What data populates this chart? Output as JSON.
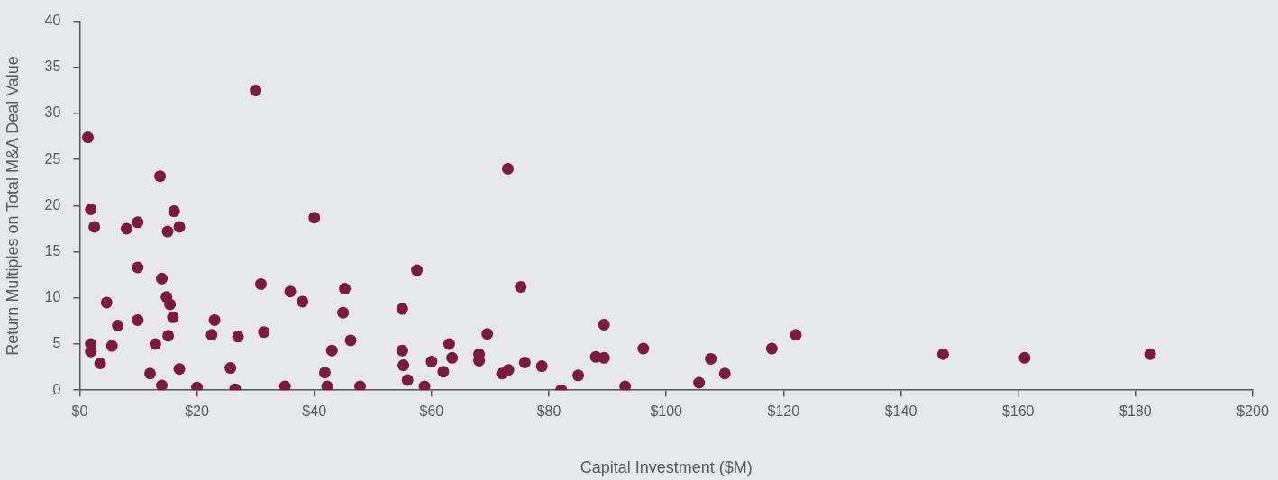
{
  "chart_data": {
    "type": "scatter",
    "xlabel": "Capital Investment ($M)",
    "ylabel": "Return Multiples on Total M&A Deal Value",
    "grid": false,
    "legend": false,
    "marker": "circle",
    "xlim": [
      0,
      200
    ],
    "ylim": [
      0,
      40
    ],
    "xticks": [
      {
        "value": 0,
        "label": "$0"
      },
      {
        "value": 20,
        "label": "$20"
      },
      {
        "value": 40,
        "label": "$40"
      },
      {
        "value": 60,
        "label": "$60"
      },
      {
        "value": 80,
        "label": "$80"
      },
      {
        "value": 100,
        "label": "$100"
      },
      {
        "value": 120,
        "label": "$120"
      },
      {
        "value": 140,
        "label": "$140"
      },
      {
        "value": 160,
        "label": "$160"
      },
      {
        "value": 180,
        "label": "$180"
      },
      {
        "value": 200,
        "label": "$200"
      }
    ],
    "yticks": [
      0,
      5,
      10,
      15,
      20,
      25,
      30,
      35,
      40
    ],
    "series": [
      {
        "color": "#7a1a3e",
        "x": [
          1.4,
          1.9,
          2.5,
          1.9,
          1.9,
          3.5,
          4.6,
          5.5,
          6.5,
          8,
          9.9,
          9.9,
          9.9,
          12,
          12.9,
          13.7,
          14,
          14,
          14.8,
          15,
          15.1,
          15.4,
          15.9,
          16.1,
          17,
          17,
          20,
          22.5,
          23,
          25.7,
          26.5,
          27,
          30,
          30.9,
          31.4,
          35,
          35.9,
          38,
          40,
          41.8,
          42.2,
          43,
          44.9,
          45.2,
          46.2,
          47.8,
          55,
          55,
          55.2,
          55.9,
          57.5,
          58.8,
          60,
          62,
          63,
          63.5,
          68.1,
          68.1,
          69.5,
          72,
          73,
          73.1,
          75.2,
          75.9,
          78.8,
          82.1,
          85,
          88,
          89.4,
          89.4,
          93,
          96.1,
          105.6,
          107.6,
          110,
          118,
          122.1,
          147.2,
          161.1,
          182.5
        ],
        "values": [
          27.4,
          19.6,
          17.7,
          5.0,
          4.2,
          2.9,
          9.5,
          4.8,
          7.0,
          17.5,
          18.2,
          13.3,
          7.6,
          1.8,
          5.0,
          23.2,
          12.1,
          0.5,
          10.1,
          17.2,
          5.9,
          9.3,
          7.9,
          19.4,
          17.7,
          2.3,
          0.3,
          6.0,
          7.6,
          2.4,
          0.1,
          5.8,
          32.5,
          11.5,
          6.3,
          0.4,
          10.7,
          9.6,
          18.7,
          1.9,
          0.4,
          4.3,
          8.4,
          11,
          5.4,
          0.4,
          8.8,
          4.3,
          2.7,
          1.1,
          13,
          0.4,
          3.1,
          2.0,
          5.0,
          3.5,
          3.9,
          3.2,
          6.1,
          1.8,
          24,
          2.2,
          11.2,
          3.0,
          2.6,
          0,
          1.6,
          3.6,
          3.5,
          7.1,
          0.4,
          4.5,
          0.8,
          3.4,
          1.8,
          4.5,
          6.0,
          3.9,
          3.5,
          3.9
        ]
      }
    ]
  }
}
